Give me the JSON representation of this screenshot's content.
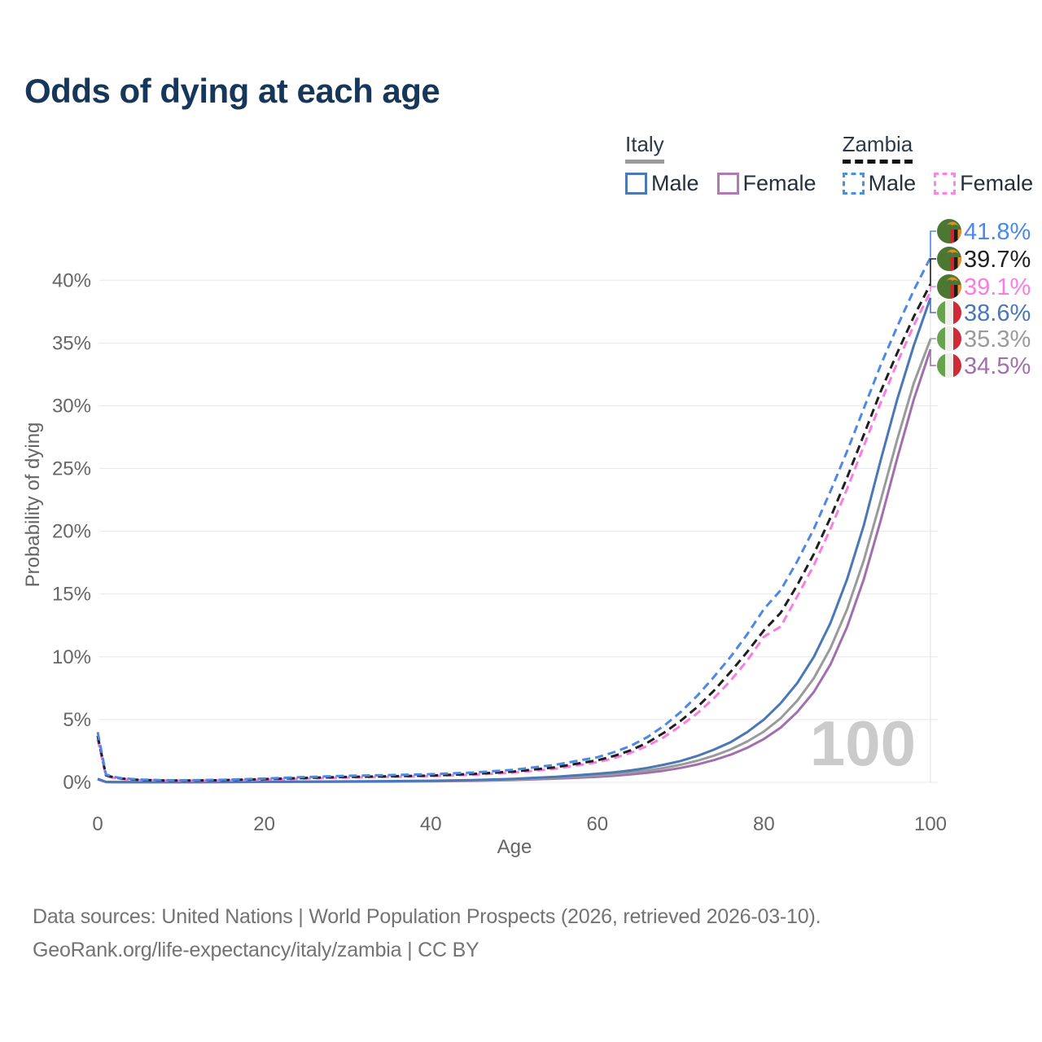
{
  "page": {
    "title": "Odds of dying at each age"
  },
  "legend": {
    "italy": {
      "title": "Italy",
      "male_label": "Male",
      "female_label": "Female"
    },
    "zambia": {
      "title": "Zambia",
      "male_label": "Male",
      "female_label": "Female"
    }
  },
  "footer": {
    "line1": "Data sources: United Nations | World Population Prospects (2026, retrieved 2026-03-10).",
    "line2": "GeoRank.org/life-expectancy/italy/zambia | CC BY"
  },
  "colors": {
    "title_text": "#17375a",
    "axis_text": "#666666",
    "gridline": "#e8e8e8",
    "age_line": "#e4e4e4",
    "watermark": "#cbcbcb",
    "italy_underline": "#9a9a9a",
    "zambia_underline": "#111111"
  },
  "chart_data": {
    "type": "line",
    "title": "Odds of dying at each age",
    "xlabel": "Age",
    "ylabel": "Probability of dying",
    "xlim": [
      0,
      100
    ],
    "ylim": [
      0,
      43
    ],
    "xticks": [
      0,
      20,
      40,
      60,
      80,
      100
    ],
    "yticks": [
      0,
      5,
      10,
      15,
      20,
      25,
      30,
      35,
      40
    ],
    "ytick_suffix": "%",
    "grid": "horizontal",
    "legend_position": "top-right",
    "age_indicator": "100",
    "x": [
      0,
      1,
      2,
      3,
      5,
      8,
      10,
      15,
      20,
      25,
      30,
      35,
      40,
      45,
      50,
      55,
      60,
      62,
      64,
      66,
      68,
      70,
      72,
      74,
      76,
      78,
      80,
      82,
      84,
      86,
      88,
      90,
      92,
      94,
      96,
      98,
      100
    ],
    "series": [
      {
        "name": "Zambia Male",
        "country": "Zambia",
        "sex": "male",
        "style": "dashed",
        "color": "#4d88e8",
        "flag": "zambia",
        "end_label": "41.8%",
        "end_value": 41.8,
        "values": [
          4.0,
          0.62,
          0.42,
          0.32,
          0.22,
          0.17,
          0.16,
          0.2,
          0.3,
          0.42,
          0.52,
          0.58,
          0.65,
          0.78,
          1.0,
          1.4,
          2.0,
          2.4,
          2.9,
          3.6,
          4.5,
          5.6,
          6.9,
          8.4,
          10.0,
          11.8,
          13.8,
          15.3,
          17.6,
          20.2,
          23.2,
          26.4,
          29.8,
          33.2,
          36.3,
          39.2,
          41.8
        ]
      },
      {
        "name": "Zambia",
        "country": "Zambia",
        "sex": "both",
        "style": "dashed",
        "color": "#1f1f1f",
        "flag": "zambia",
        "end_label": "39.7%",
        "end_value": 39.7,
        "values": [
          3.7,
          0.56,
          0.38,
          0.29,
          0.19,
          0.15,
          0.14,
          0.17,
          0.25,
          0.35,
          0.43,
          0.48,
          0.54,
          0.66,
          0.86,
          1.2,
          1.75,
          2.1,
          2.55,
          3.15,
          3.95,
          4.9,
          6.0,
          7.3,
          8.8,
          10.4,
          12.1,
          13.5,
          15.7,
          18.2,
          21.1,
          24.3,
          27.7,
          31.1,
          34.2,
          37.1,
          39.7
        ]
      },
      {
        "name": "Zambia Female",
        "country": "Zambia",
        "sex": "female",
        "style": "dashed",
        "color": "#fb7ce1",
        "flag": "zambia",
        "end_label": "39.1%",
        "end_value": 39.1,
        "values": [
          3.4,
          0.5,
          0.34,
          0.26,
          0.17,
          0.14,
          0.13,
          0.15,
          0.21,
          0.3,
          0.38,
          0.43,
          0.49,
          0.6,
          0.78,
          1.08,
          1.6,
          1.92,
          2.35,
          2.9,
          3.6,
          4.5,
          5.5,
          6.7,
          8.1,
          9.7,
          11.6,
          12.4,
          14.8,
          17.3,
          20.2,
          23.4,
          26.8,
          30.2,
          33.4,
          36.4,
          39.1
        ]
      },
      {
        "name": "Italy Male",
        "country": "Italy",
        "sex": "male",
        "style": "solid",
        "color": "#4a77b5",
        "flag": "italy",
        "end_label": "38.6%",
        "end_value": 38.6,
        "values": [
          0.28,
          0.03,
          0.02,
          0.02,
          0.01,
          0.01,
          0.01,
          0.03,
          0.05,
          0.06,
          0.07,
          0.09,
          0.12,
          0.18,
          0.28,
          0.44,
          0.68,
          0.8,
          0.95,
          1.15,
          1.4,
          1.7,
          2.1,
          2.6,
          3.2,
          4.0,
          5.0,
          6.3,
          7.9,
          10.0,
          12.7,
          16.2,
          20.5,
          25.6,
          30.5,
          34.8,
          38.6
        ]
      },
      {
        "name": "Italy",
        "country": "Italy",
        "sex": "both",
        "style": "solid",
        "color": "#9a9a9a",
        "flag": "italy",
        "end_label": "35.3%",
        "end_value": 35.3,
        "values": [
          0.26,
          0.03,
          0.02,
          0.02,
          0.01,
          0.01,
          0.01,
          0.02,
          0.04,
          0.05,
          0.06,
          0.08,
          0.1,
          0.15,
          0.23,
          0.36,
          0.55,
          0.65,
          0.78,
          0.94,
          1.14,
          1.4,
          1.72,
          2.12,
          2.62,
          3.25,
          4.05,
          5.1,
          6.5,
          8.3,
          10.7,
          13.8,
          17.7,
          22.4,
          27.3,
          31.8,
          35.3
        ]
      },
      {
        "name": "Italy Female",
        "country": "Italy",
        "sex": "female",
        "style": "solid",
        "color": "#a26fae",
        "flag": "italy",
        "end_label": "34.5%",
        "end_value": 34.5,
        "values": [
          0.24,
          0.02,
          0.02,
          0.01,
          0.01,
          0.01,
          0.01,
          0.02,
          0.03,
          0.04,
          0.05,
          0.06,
          0.08,
          0.12,
          0.19,
          0.29,
          0.44,
          0.52,
          0.63,
          0.76,
          0.93,
          1.15,
          1.42,
          1.77,
          2.2,
          2.75,
          3.45,
          4.35,
          5.6,
          7.2,
          9.4,
          12.4,
          16.2,
          20.8,
          25.8,
          30.5,
          34.5
        ]
      }
    ]
  }
}
